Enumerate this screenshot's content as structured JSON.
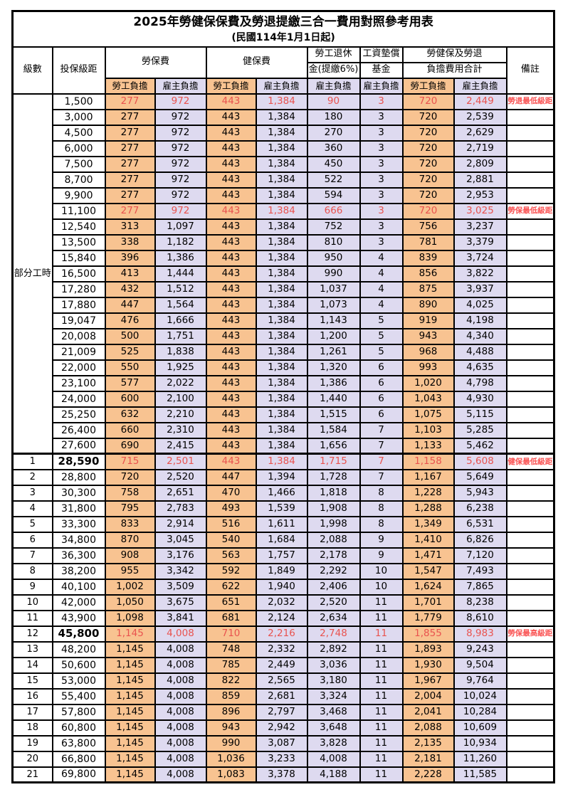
{
  "title": {
    "main": "2025年勞健保保費及勞退提繳三合一費用對照參考用表",
    "sub": "(民國114年1月1日起)"
  },
  "header": {
    "level_label": "級數",
    "bracket_label": "投保級距",
    "labor_group": "勞保費",
    "health_group": "健保費",
    "pension_line1": "勞工退休",
    "pension_line2": "金(提繳6%)",
    "wagefund_line1": "工資墊償",
    "wagefund_line2": "基金",
    "total_line1": "勞健保及勞退",
    "total_line2": "負擔費用合計",
    "remark_label": "備註",
    "employee_label": "勞工負擔",
    "employer_label": "雇主負擔"
  },
  "colors": {
    "employee_bg": "#f8c391",
    "employer_bg": "#dedaf0",
    "highlight_text": "#e9534f",
    "remark_text": "#fa5252"
  },
  "table": {
    "part_time_label": "部分工時",
    "part_time_row_count": 23,
    "col_keys": [
      "level",
      "bracket",
      "labor_employee",
      "labor_employer",
      "health_employee",
      "health_employer",
      "pension_employer",
      "wagefund_employer",
      "total_employee",
      "total_employer",
      "remark",
      "flags"
    ],
    "rows": [
      [
        "",
        "1,500",
        "277",
        "972",
        "443",
        "1,384",
        "90",
        "3",
        "720",
        "2,449",
        "勞退最低級距",
        "hl"
      ],
      [
        "",
        "3,000",
        "277",
        "972",
        "443",
        "1,384",
        "180",
        "3",
        "720",
        "2,539",
        "",
        ""
      ],
      [
        "",
        "4,500",
        "277",
        "972",
        "443",
        "1,384",
        "270",
        "3",
        "720",
        "2,629",
        "",
        ""
      ],
      [
        "",
        "6,000",
        "277",
        "972",
        "443",
        "1,384",
        "360",
        "3",
        "720",
        "2,719",
        "",
        ""
      ],
      [
        "",
        "7,500",
        "277",
        "972",
        "443",
        "1,384",
        "450",
        "3",
        "720",
        "2,809",
        "",
        ""
      ],
      [
        "",
        "8,700",
        "277",
        "972",
        "443",
        "1,384",
        "522",
        "3",
        "720",
        "2,881",
        "",
        ""
      ],
      [
        "",
        "9,900",
        "277",
        "972",
        "443",
        "1,384",
        "594",
        "3",
        "720",
        "2,953",
        "",
        ""
      ],
      [
        "",
        "11,100",
        "277",
        "972",
        "443",
        "1,384",
        "666",
        "3",
        "720",
        "3,025",
        "勞保最低級距",
        "hl"
      ],
      [
        "",
        "12,540",
        "313",
        "1,097",
        "443",
        "1,384",
        "752",
        "3",
        "756",
        "3,237",
        "",
        ""
      ],
      [
        "",
        "13,500",
        "338",
        "1,182",
        "443",
        "1,384",
        "810",
        "3",
        "781",
        "3,379",
        "",
        ""
      ],
      [
        "",
        "15,840",
        "396",
        "1,386",
        "443",
        "1,384",
        "950",
        "4",
        "839",
        "3,724",
        "",
        ""
      ],
      [
        "",
        "16,500",
        "413",
        "1,444",
        "443",
        "1,384",
        "990",
        "4",
        "856",
        "3,822",
        "",
        ""
      ],
      [
        "",
        "17,280",
        "432",
        "1,512",
        "443",
        "1,384",
        "1,037",
        "4",
        "875",
        "3,937",
        "",
        ""
      ],
      [
        "",
        "17,880",
        "447",
        "1,564",
        "443",
        "1,384",
        "1,073",
        "4",
        "890",
        "4,025",
        "",
        ""
      ],
      [
        "",
        "19,047",
        "476",
        "1,666",
        "443",
        "1,384",
        "1,143",
        "5",
        "919",
        "4,198",
        "",
        ""
      ],
      [
        "",
        "20,008",
        "500",
        "1,751",
        "443",
        "1,384",
        "1,200",
        "5",
        "943",
        "4,340",
        "",
        ""
      ],
      [
        "",
        "21,009",
        "525",
        "1,838",
        "443",
        "1,384",
        "1,261",
        "5",
        "968",
        "4,488",
        "",
        ""
      ],
      [
        "",
        "22,000",
        "550",
        "1,925",
        "443",
        "1,384",
        "1,320",
        "6",
        "993",
        "4,635",
        "",
        ""
      ],
      [
        "",
        "23,100",
        "577",
        "2,022",
        "443",
        "1,384",
        "1,386",
        "6",
        "1,020",
        "4,798",
        "",
        ""
      ],
      [
        "",
        "24,000",
        "600",
        "2,100",
        "443",
        "1,384",
        "1,440",
        "6",
        "1,043",
        "4,930",
        "",
        ""
      ],
      [
        "",
        "25,250",
        "632",
        "2,210",
        "443",
        "1,384",
        "1,515",
        "6",
        "1,075",
        "5,115",
        "",
        ""
      ],
      [
        "",
        "26,400",
        "660",
        "2,310",
        "443",
        "1,384",
        "1,584",
        "7",
        "1,103",
        "5,285",
        "",
        ""
      ],
      [
        "",
        "27,600",
        "690",
        "2,415",
        "443",
        "1,384",
        "1,656",
        "7",
        "1,133",
        "5,462",
        "",
        ""
      ],
      [
        "1",
        "28,590",
        "715",
        "2,501",
        "443",
        "1,384",
        "1,715",
        "7",
        "1,158",
        "5,608",
        "健保最低級距",
        "hl bold thick"
      ],
      [
        "2",
        "28,800",
        "720",
        "2,520",
        "447",
        "1,394",
        "1,728",
        "7",
        "1,167",
        "5,649",
        "",
        ""
      ],
      [
        "3",
        "30,300",
        "758",
        "2,651",
        "470",
        "1,466",
        "1,818",
        "8",
        "1,228",
        "5,943",
        "",
        ""
      ],
      [
        "4",
        "31,800",
        "795",
        "2,783",
        "493",
        "1,539",
        "1,908",
        "8",
        "1,288",
        "6,238",
        "",
        ""
      ],
      [
        "5",
        "33,300",
        "833",
        "2,914",
        "516",
        "1,611",
        "1,998",
        "8",
        "1,349",
        "6,531",
        "",
        ""
      ],
      [
        "6",
        "34,800",
        "870",
        "3,045",
        "540",
        "1,684",
        "2,088",
        "9",
        "1,410",
        "6,826",
        "",
        ""
      ],
      [
        "7",
        "36,300",
        "908",
        "3,176",
        "563",
        "1,757",
        "2,178",
        "9",
        "1,471",
        "7,120",
        "",
        ""
      ],
      [
        "8",
        "38,200",
        "955",
        "3,342",
        "592",
        "1,849",
        "2,292",
        "10",
        "1,547",
        "7,493",
        "",
        ""
      ],
      [
        "9",
        "40,100",
        "1,002",
        "3,509",
        "622",
        "1,940",
        "2,406",
        "10",
        "1,624",
        "7,865",
        "",
        ""
      ],
      [
        "10",
        "42,000",
        "1,050",
        "3,675",
        "651",
        "2,032",
        "2,520",
        "11",
        "1,701",
        "8,238",
        "",
        ""
      ],
      [
        "11",
        "43,900",
        "1,098",
        "3,841",
        "681",
        "2,124",
        "2,634",
        "11",
        "1,779",
        "8,610",
        "",
        ""
      ],
      [
        "12",
        "45,800",
        "1,145",
        "4,008",
        "710",
        "2,216",
        "2,748",
        "11",
        "1,855",
        "8,983",
        "勞保最高級距",
        "hl bold"
      ],
      [
        "13",
        "48,200",
        "1,145",
        "4,008",
        "748",
        "2,332",
        "2,892",
        "11",
        "1,893",
        "9,243",
        "",
        ""
      ],
      [
        "14",
        "50,600",
        "1,145",
        "4,008",
        "785",
        "2,449",
        "3,036",
        "11",
        "1,930",
        "9,504",
        "",
        ""
      ],
      [
        "15",
        "53,000",
        "1,145",
        "4,008",
        "822",
        "2,565",
        "3,180",
        "11",
        "1,967",
        "9,764",
        "",
        ""
      ],
      [
        "16",
        "55,400",
        "1,145",
        "4,008",
        "859",
        "2,681",
        "3,324",
        "11",
        "2,004",
        "10,024",
        "",
        ""
      ],
      [
        "17",
        "57,800",
        "1,145",
        "4,008",
        "896",
        "2,797",
        "3,468",
        "11",
        "2,041",
        "10,284",
        "",
        ""
      ],
      [
        "18",
        "60,800",
        "1,145",
        "4,008",
        "943",
        "2,942",
        "3,648",
        "11",
        "2,088",
        "10,609",
        "",
        ""
      ],
      [
        "19",
        "63,800",
        "1,145",
        "4,008",
        "990",
        "3,087",
        "3,828",
        "11",
        "2,135",
        "10,934",
        "",
        ""
      ],
      [
        "20",
        "66,800",
        "1,145",
        "4,008",
        "1,036",
        "3,233",
        "4,008",
        "11",
        "2,181",
        "11,260",
        "",
        ""
      ],
      [
        "21",
        "69,800",
        "1,145",
        "4,008",
        "1,083",
        "3,378",
        "4,188",
        "11",
        "2,228",
        "11,585",
        "",
        ""
      ]
    ]
  }
}
